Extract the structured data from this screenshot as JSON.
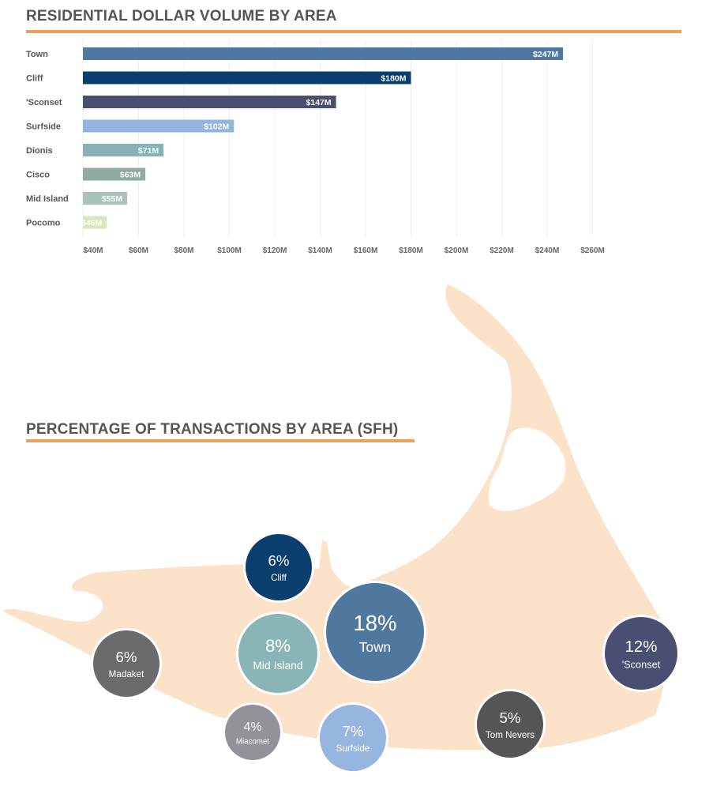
{
  "chart_data": [
    {
      "type": "bar",
      "orientation": "horizontal",
      "title": "RESIDENTIAL DOLLAR VOLUME BY AREA",
      "categories": [
        "Town",
        "Cliff",
        "'Sconset",
        "Surfside",
        "Dionis",
        "Cisco",
        "Mid Island",
        "Pocomo"
      ],
      "values": [
        247,
        180,
        147,
        102,
        71,
        63,
        55,
        46
      ],
      "value_labels": [
        "$247M",
        "$180M",
        "$147M",
        "$102M",
        "$71M",
        "$63M",
        "$55M",
        "$46M"
      ],
      "colors": [
        "#50789f",
        "#0a3f6d",
        "#4a4f72",
        "#93b4de",
        "#86b3b5",
        "#8faaa2",
        "#a9c3bc",
        "#d8e7bd"
      ],
      "xticks": [
        40,
        60,
        80,
        100,
        120,
        140,
        160,
        180,
        200,
        220,
        240,
        260
      ],
      "xtick_labels": [
        "$40M",
        "$60M",
        "$80M",
        "$100M",
        "$120M",
        "$140M",
        "$160M",
        "$180M",
        "$200M",
        "$220M",
        "$240M",
        "$260M"
      ],
      "xlim": [
        40,
        260
      ],
      "unit": "$M",
      "grid": true
    },
    {
      "type": "bubble-map",
      "title": "PERCENTAGE OF TRANSACTIONS BY AREA (SFH)",
      "map_color": "#fde2ca",
      "bubbles": [
        {
          "name": "Cliff",
          "value": 6,
          "label": "6%",
          "color": "#0a3f6d"
        },
        {
          "name": "Town",
          "value": 18,
          "label": "18%",
          "color": "#50789f"
        },
        {
          "name": "Mid Island",
          "value": 8,
          "label": "8%",
          "color": "#8ab5b6"
        },
        {
          "name": "Madaket",
          "value": 6,
          "label": "6%",
          "color": "#6b6b6d"
        },
        {
          "name": "'Sconset",
          "value": 12,
          "label": "12%",
          "color": "#4a4f72"
        },
        {
          "name": "Miacomet",
          "value": 4,
          "label": "4%",
          "color": "#929398"
        },
        {
          "name": "Surfside",
          "value": 7,
          "label": "7%",
          "color": "#96b5df"
        },
        {
          "name": "Tom Nevers",
          "value": 5,
          "label": "5%",
          "color": "#555557"
        }
      ]
    }
  ],
  "accent": "#eaa257"
}
